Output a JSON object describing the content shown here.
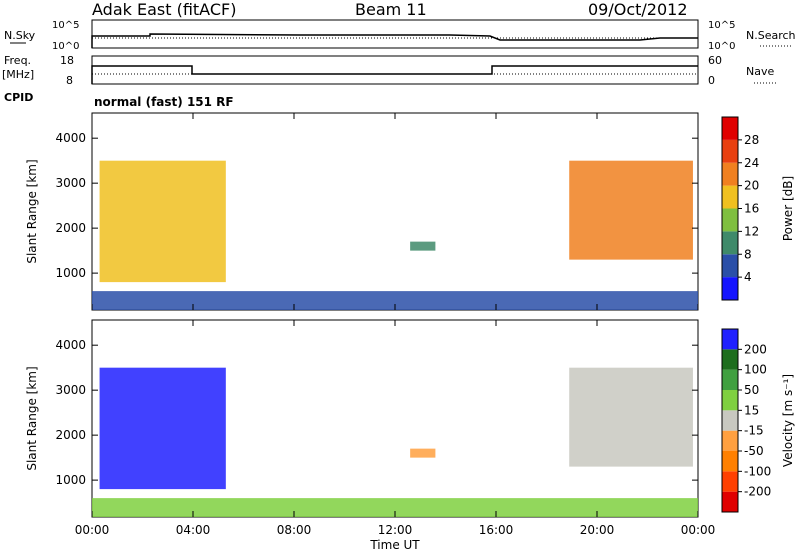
{
  "header": {
    "station": "Adak East (fitACF)",
    "beam": "Beam 11",
    "date": "09/Oct/2012"
  },
  "status_panels": {
    "nsky_label": "N.Sky",
    "nsearch_label": "N.Search",
    "noise_ticks": [
      "10^5",
      "10^0"
    ],
    "freq_label_line1": "Freq.",
    "freq_label_line2": "[MHz]",
    "freq_ticks": [
      "18",
      "8"
    ],
    "nave_label": "Nave",
    "nave_ticks": [
      "60",
      "0"
    ],
    "cpid_label": "CPID",
    "cpid_text": "normal (fast) 151 RF"
  },
  "colors": {
    "power_scale": [
      "#1414ff",
      "#2a4fa8",
      "#3f8a6a",
      "#7fbf40",
      "#f0c020",
      "#f08020",
      "#e84010",
      "#e00000"
    ],
    "velocity_scale": [
      "#e00000",
      "#ff4000",
      "#ff8000",
      "#ffa040",
      "#c8c8c0",
      "#7fd040",
      "#40a040",
      "#1e6e1e",
      "#2020ff"
    ]
  },
  "chart_data": [
    {
      "type": "heatmap",
      "name": "power",
      "xlabel": "",
      "ylabel": "Slant Range [km]",
      "xlim": [
        "00:00",
        "24:00"
      ],
      "ylim": [
        180,
        4560
      ],
      "yticks": [
        "1000",
        "2000",
        "3000",
        "4000"
      ],
      "colorbar": {
        "label": "Power [dB]",
        "ticks": [
          "4",
          "8",
          "12",
          "16",
          "20",
          "24",
          "28"
        ],
        "range": [
          0,
          32
        ]
      },
      "regions": [
        {
          "t_start": 0.3,
          "t_end": 5.3,
          "range_low": 800,
          "range_high": 3500,
          "value": 18
        },
        {
          "t_start": 12.6,
          "t_end": 13.6,
          "range_low": 1500,
          "range_high": 1700,
          "value": 10
        },
        {
          "t_start": 18.9,
          "t_end": 23.8,
          "range_low": 1300,
          "range_high": 3500,
          "value": 22
        },
        {
          "t_start": 0.0,
          "t_end": 24.0,
          "range_low": 180,
          "range_high": 600,
          "value": 6
        }
      ]
    },
    {
      "type": "heatmap",
      "name": "velocity",
      "xlabel": "Time UT",
      "ylabel": "Slant Range [km]",
      "xlim": [
        "00:00",
        "24:00"
      ],
      "ylim": [
        180,
        4560
      ],
      "xticks": [
        "00:00",
        "04:00",
        "08:00",
        "12:00",
        "16:00",
        "20:00",
        "00:00"
      ],
      "yticks": [
        "1000",
        "2000",
        "3000",
        "4000"
      ],
      "colorbar": {
        "label": "Velocity [m s⁻¹]",
        "ticks": [
          "200",
          "100",
          "50",
          "15",
          "-15",
          "-50",
          "-100",
          "-200"
        ],
        "range": [
          -250,
          250
        ]
      },
      "regions": [
        {
          "t_start": 0.3,
          "t_end": 5.3,
          "range_low": 800,
          "range_high": 3500,
          "value": 220
        },
        {
          "t_start": 12.6,
          "t_end": 13.6,
          "range_low": 1500,
          "range_high": 1700,
          "value": -80
        },
        {
          "t_start": 18.9,
          "t_end": 23.8,
          "range_low": 1300,
          "range_high": 3500,
          "value": 0
        },
        {
          "t_start": 0.0,
          "t_end": 24.0,
          "range_low": 180,
          "range_high": 600,
          "value": 40
        }
      ]
    }
  ]
}
